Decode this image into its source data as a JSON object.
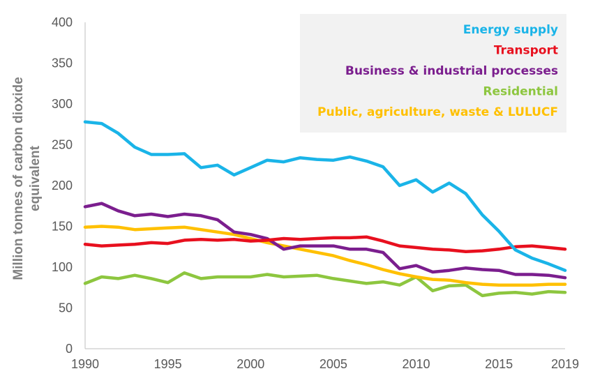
{
  "chart_data": {
    "type": "line",
    "title": "",
    "xlabel": "",
    "ylabel": "Million tonnes of carbon dioxide equivalent",
    "ylabel_lines": [
      "Million tonnes of carbon dioxide",
      "equivalent"
    ],
    "xlim": [
      1990,
      2019
    ],
    "ylim": [
      0,
      400
    ],
    "x_ticks": [
      1990,
      1995,
      2000,
      2005,
      2010,
      2015,
      2019
    ],
    "y_ticks": [
      0,
      50,
      100,
      150,
      200,
      250,
      300,
      350,
      400
    ],
    "grid": false,
    "legend_placement": "top-right",
    "x": [
      1990,
      1991,
      1992,
      1993,
      1994,
      1995,
      1996,
      1997,
      1998,
      1999,
      2000,
      2001,
      2002,
      2003,
      2004,
      2005,
      2006,
      2007,
      2008,
      2009,
      2010,
      2011,
      2012,
      2013,
      2014,
      2015,
      2016,
      2017,
      2018,
      2019
    ],
    "series": [
      {
        "name": "Energy supply",
        "color": "#1AB4E8",
        "values": [
          278,
          276,
          264,
          247,
          238,
          238,
          239,
          222,
          225,
          213,
          222,
          231,
          229,
          234,
          232,
          231,
          235,
          230,
          223,
          200,
          207,
          192,
          203,
          190,
          164,
          144,
          121,
          111,
          104,
          96
        ]
      },
      {
        "name": "Transport",
        "color": "#E8101E",
        "values": [
          128,
          126,
          127,
          128,
          130,
          129,
          133,
          134,
          133,
          134,
          132,
          133,
          135,
          134,
          135,
          136,
          136,
          137,
          132,
          126,
          124,
          122,
          121,
          119,
          120,
          122,
          125,
          126,
          124,
          122
        ]
      },
      {
        "name": "Business & industrial processes",
        "color": "#7B1E8E",
        "values": [
          174,
          178,
          169,
          163,
          165,
          162,
          165,
          163,
          158,
          143,
          140,
          135,
          122,
          126,
          126,
          126,
          122,
          122,
          118,
          98,
          102,
          94,
          96,
          99,
          97,
          96,
          91,
          91,
          90,
          87
        ]
      },
      {
        "name": "Residential",
        "color": "#8DC63F",
        "values": [
          80,
          88,
          86,
          90,
          86,
          81,
          93,
          86,
          88,
          88,
          88,
          91,
          88,
          89,
          90,
          86,
          83,
          80,
          82,
          78,
          88,
          71,
          77,
          78,
          65,
          68,
          69,
          67,
          70,
          69
        ]
      },
      {
        "name": "Public, agriculture, waste & LULUCF",
        "color": "#FFC000",
        "values": [
          149,
          150,
          149,
          146,
          147,
          148,
          149,
          146,
          143,
          140,
          135,
          130,
          126,
          122,
          118,
          114,
          108,
          103,
          97,
          92,
          88,
          85,
          84,
          81,
          79,
          78,
          78,
          78,
          79,
          79
        ]
      }
    ]
  }
}
